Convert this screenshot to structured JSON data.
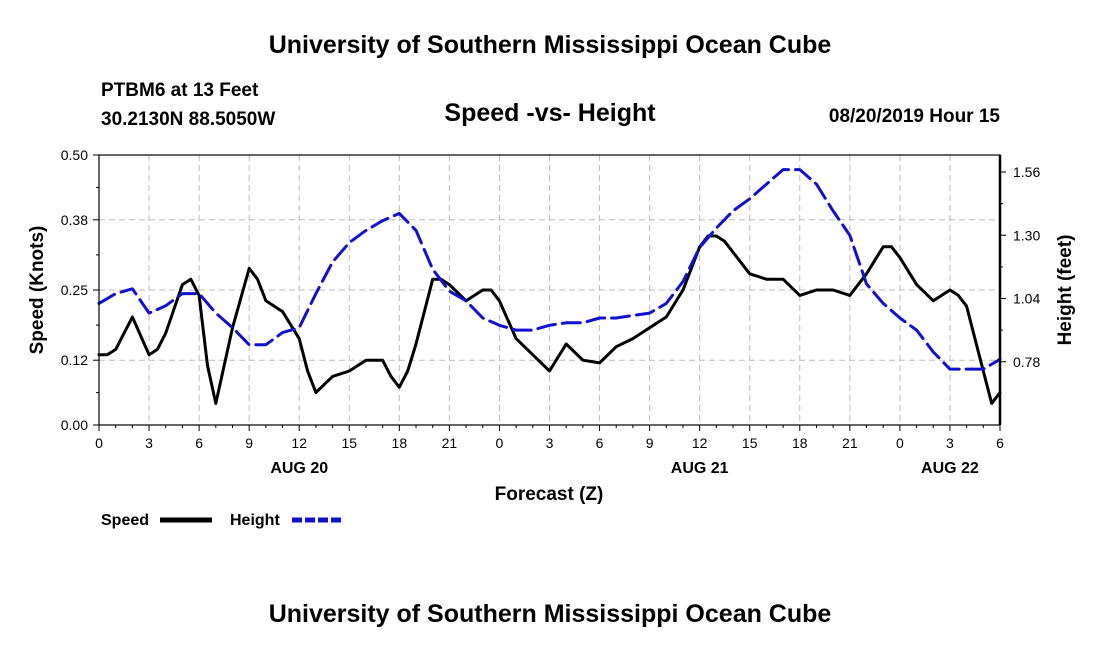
{
  "header": {
    "title": "University of Southern Mississippi Ocean Cube",
    "station_name": "PTBM6 at 13 Feet",
    "station_coords": "30.2130N 88.5050W",
    "subtitle": "Speed -vs- Height",
    "datetime": "08/20/2019 Hour 15"
  },
  "footer": {
    "title": "University of Southern Mississippi Ocean Cube"
  },
  "legend": {
    "speed_label": "Speed",
    "height_label": "Height"
  },
  "colors": {
    "speed": "#000000",
    "height": "#1010d0",
    "grid": "#bbbbbb"
  },
  "chart_data": {
    "type": "line",
    "title": "Speed -vs- Height",
    "xlabel": "Forecast (Z)",
    "ylabel_left": "Speed (Knots)",
    "ylabel_right": "Height (feet)",
    "x_hours_range": [
      0,
      54
    ],
    "ylim_left": [
      0.0,
      0.5
    ],
    "ylim_right": [
      0.52,
      1.63
    ],
    "x_tick_hours": [
      0,
      3,
      6,
      9,
      12,
      15,
      18,
      21,
      24,
      27,
      30,
      33,
      36,
      39,
      42,
      45,
      48,
      51,
      54
    ],
    "x_tick_labels": [
      "0",
      "3",
      "6",
      "9",
      "12",
      "15",
      "18",
      "21",
      "0",
      "3",
      "6",
      "9",
      "12",
      "15",
      "18",
      "21",
      "0",
      "3",
      "6"
    ],
    "y_left_ticks": [
      0.0,
      0.12,
      0.25,
      0.38,
      0.5
    ],
    "y_left_tick_labels": [
      "0.00",
      "0.12",
      "0.25",
      "0.38",
      "0.50"
    ],
    "y_right_ticks": [
      0.78,
      1.04,
      1.3,
      1.56
    ],
    "y_right_tick_labels": [
      "0.78",
      "1.04",
      "1.30",
      "1.56"
    ],
    "day_labels": [
      {
        "hour": 12,
        "label": "AUG 20"
      },
      {
        "hour": 36,
        "label": "AUG 21"
      },
      {
        "hour": 51,
        "label": "AUG 22"
      }
    ],
    "series": [
      {
        "name": "Speed",
        "axis": "left",
        "style": "solid",
        "x": [
          0,
          0.5,
          1,
          2,
          3,
          3.5,
          4,
          5,
          5.5,
          6,
          6.5,
          7,
          8,
          9,
          9.5,
          10,
          11,
          12,
          12.5,
          13,
          14,
          15,
          16,
          16.5,
          17,
          17.5,
          18,
          18.5,
          19,
          20,
          20.5,
          21,
          22,
          23,
          23.5,
          24,
          25,
          26,
          27,
          28,
          29,
          30,
          31,
          32,
          33,
          34,
          35,
          36,
          36.5,
          37,
          37.5,
          38,
          39,
          40,
          41,
          42,
          43,
          44,
          45,
          46,
          47,
          47.5,
          48,
          49,
          50,
          50.5,
          51,
          51.5,
          52,
          53,
          53.5,
          54
        ],
        "values": [
          0.13,
          0.13,
          0.14,
          0.2,
          0.13,
          0.14,
          0.17,
          0.26,
          0.27,
          0.24,
          0.11,
          0.04,
          0.18,
          0.29,
          0.27,
          0.23,
          0.21,
          0.16,
          0.1,
          0.06,
          0.09,
          0.1,
          0.12,
          0.12,
          0.12,
          0.09,
          0.07,
          0.1,
          0.15,
          0.27,
          0.27,
          0.26,
          0.23,
          0.25,
          0.25,
          0.23,
          0.16,
          0.13,
          0.1,
          0.15,
          0.12,
          0.115,
          0.145,
          0.16,
          0.18,
          0.2,
          0.25,
          0.33,
          0.35,
          0.35,
          0.34,
          0.32,
          0.28,
          0.27,
          0.27,
          0.24,
          0.25,
          0.25,
          0.24,
          0.28,
          0.33,
          0.33,
          0.31,
          0.26,
          0.23,
          0.24,
          0.25,
          0.24,
          0.22,
          0.1,
          0.04,
          0.06
        ]
      },
      {
        "name": "Height",
        "axis": "right",
        "style": "dashed",
        "x": [
          0,
          1,
          2,
          3,
          4,
          5,
          6,
          7,
          8,
          9,
          10,
          11,
          12,
          13,
          14,
          15,
          16,
          17,
          18,
          19,
          20,
          21,
          22,
          23,
          24,
          25,
          26,
          27,
          28,
          29,
          30,
          31,
          32,
          33,
          34,
          35,
          36,
          37,
          38,
          39,
          40,
          41,
          42,
          43,
          44,
          45,
          46,
          47,
          48,
          49,
          50,
          51,
          52,
          53,
          54
        ],
        "values": [
          1.02,
          1.06,
          1.08,
          0.98,
          1.01,
          1.06,
          1.06,
          0.98,
          0.92,
          0.85,
          0.85,
          0.9,
          0.92,
          1.06,
          1.19,
          1.27,
          1.32,
          1.36,
          1.39,
          1.32,
          1.16,
          1.07,
          1.03,
          0.96,
          0.93,
          0.91,
          0.91,
          0.93,
          0.94,
          0.94,
          0.96,
          0.96,
          0.97,
          0.98,
          1.02,
          1.11,
          1.25,
          1.33,
          1.4,
          1.45,
          1.51,
          1.57,
          1.57,
          1.51,
          1.4,
          1.3,
          1.1,
          1.02,
          0.96,
          0.91,
          0.82,
          0.75,
          0.75,
          0.75,
          0.79
        ]
      }
    ]
  }
}
